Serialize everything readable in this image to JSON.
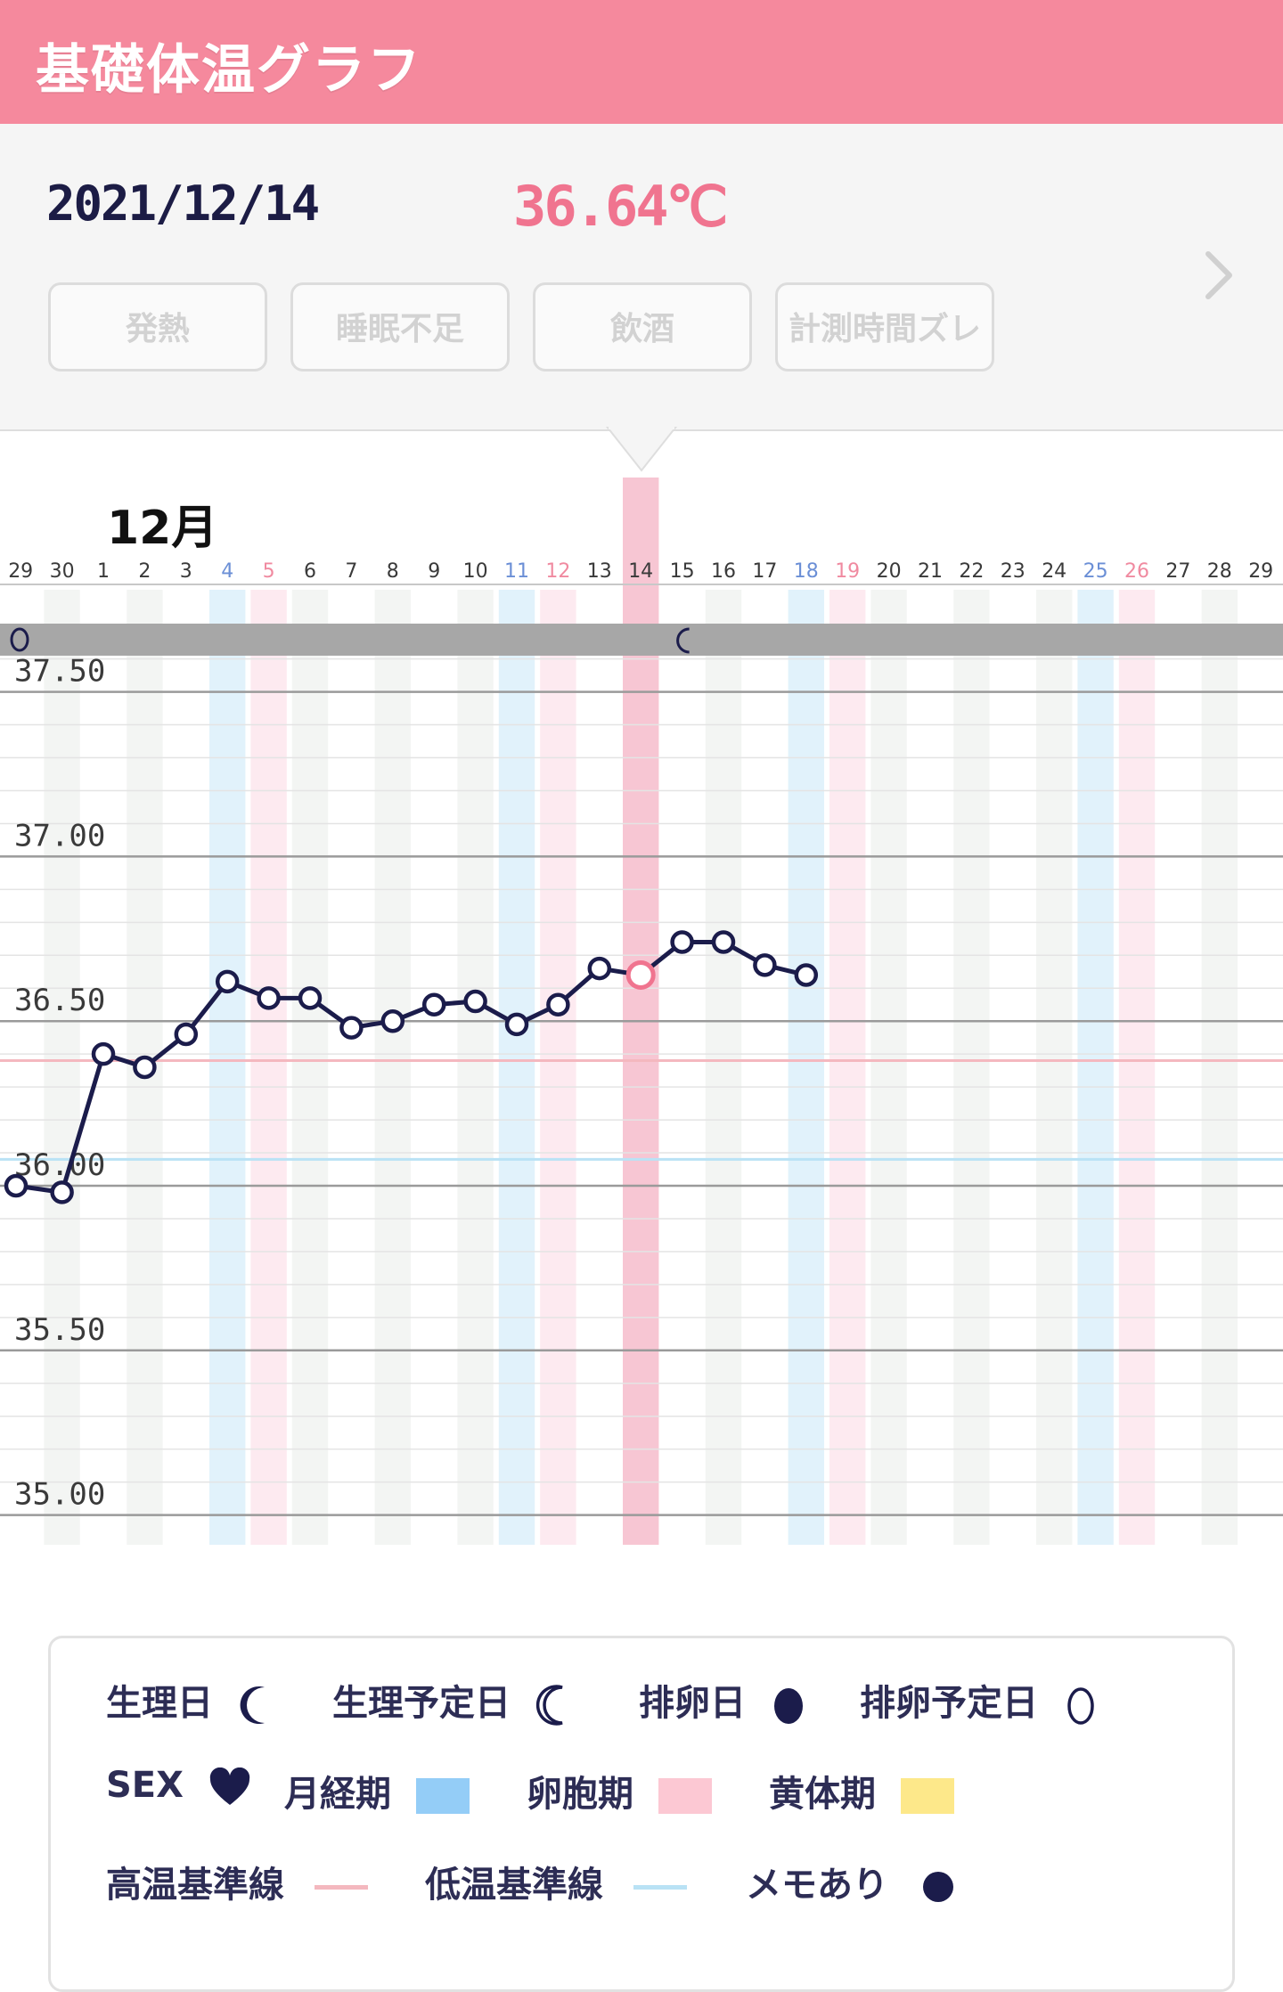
{
  "header": {
    "title": "基礎体温グラフ"
  },
  "selected": {
    "date": "2021/12/14",
    "temperature": "36.64℃"
  },
  "tags": [
    "発熱",
    "睡眠不足",
    "飲酒",
    "計測時間ズレ"
  ],
  "nav": {
    "next_icon": "chevron-right-icon"
  },
  "chart_data": {
    "type": "line",
    "month_label": "12月",
    "x": [
      "29",
      "30",
      "1",
      "2",
      "3",
      "4",
      "5",
      "6",
      "7",
      "8",
      "9",
      "10",
      "11",
      "12",
      "13",
      "14",
      "15",
      "16",
      "17",
      "18",
      "19",
      "20",
      "21",
      "22",
      "23",
      "24",
      "25",
      "26",
      "27",
      "28",
      "29"
    ],
    "series": [
      {
        "values": [
          36.0,
          35.98,
          36.4,
          36.36,
          36.46,
          36.62,
          36.57,
          36.57,
          36.48,
          36.5,
          36.55,
          36.56,
          36.49,
          36.55,
          36.66,
          36.64,
          36.74,
          36.74,
          36.67,
          36.64,
          null,
          null,
          null,
          null,
          null,
          null,
          null,
          null,
          null,
          null,
          null
        ]
      }
    ],
    "selected_index": 15,
    "ylim": [
      35.0,
      37.63
    ],
    "yticks": [
      "37.50",
      "37.00",
      "36.50",
      "36.00",
      "35.50",
      "35.00"
    ],
    "high_baseline": 36.38,
    "low_baseline": 36.08,
    "menstrual_days": [
      "4",
      "11",
      "18",
      "25"
    ],
    "follicular_days": [
      "5",
      "12",
      "19",
      "26"
    ],
    "period_expected_marker_day": "29",
    "period_marker_day": "15",
    "colors": {
      "line": "#1b1c4b",
      "selected": "#f0748f",
      "selected_band": "#f7c6d3",
      "blue_col": "#e1f2fb",
      "pink_col": "#fdeaf0",
      "grey_col": "#f3f5f3",
      "marker_band": "#a7a7a7",
      "high_line": "#f4b8bf",
      "low_line": "#b9e2f5",
      "grid": "#9a9a9a"
    }
  },
  "legend": {
    "items": [
      {
        "label": "生理日",
        "icon": "crescent-moon-filled-icon"
      },
      {
        "label": "生理予定日",
        "icon": "crescent-moon-outline-icon"
      },
      {
        "label": "排卵日",
        "icon": "egg-filled-icon"
      },
      {
        "label": "排卵予定日",
        "icon": "egg-outline-icon"
      },
      {
        "label": "SEX",
        "icon": "heart-icon"
      },
      {
        "label": "月経期",
        "color": "#94cdf7"
      },
      {
        "label": "卵胞期",
        "color": "#fcc8d3"
      },
      {
        "label": "黄体期",
        "color": "#fde88a"
      },
      {
        "label": "高温基準線",
        "color": "#f4b8bf"
      },
      {
        "label": "低温基準線",
        "color": "#b9e2f5"
      },
      {
        "label": "メモあり",
        "icon": "memo-dot-icon"
      }
    ]
  }
}
